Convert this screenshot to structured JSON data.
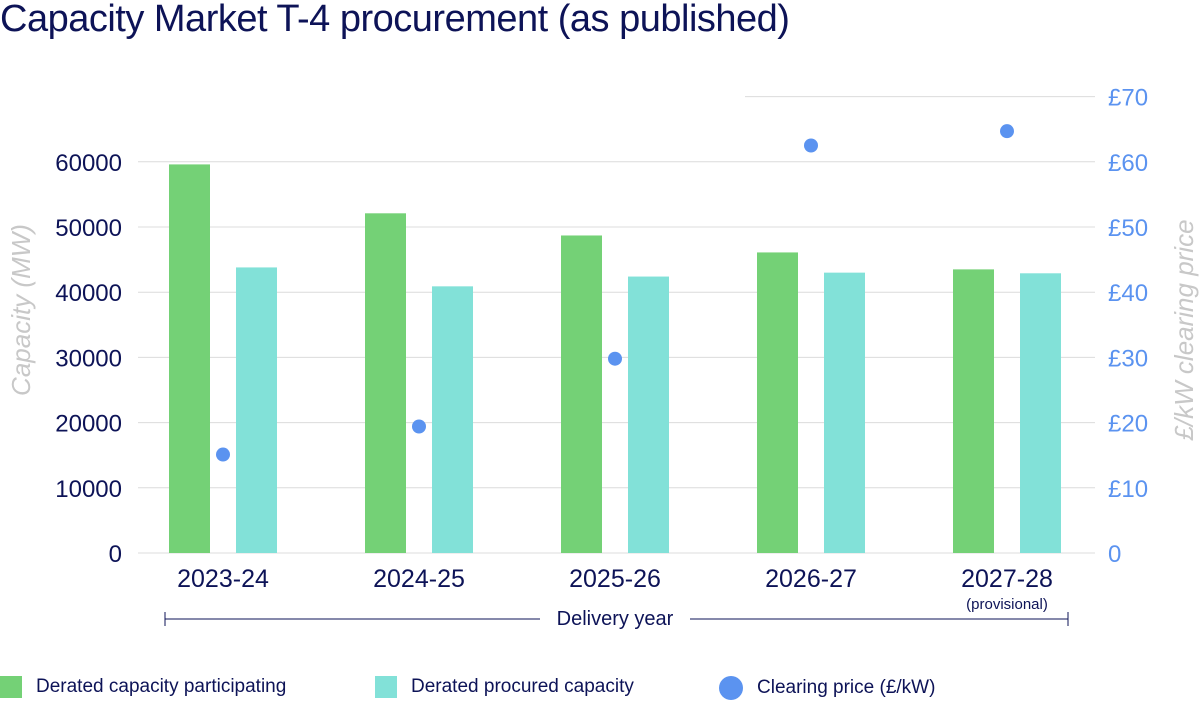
{
  "chart_data": {
    "type": "bar",
    "title": "Capacity Market T-4 procurement (as published)",
    "categories": [
      "2023-24",
      "2024-25",
      "2025-26",
      "2026-27",
      "2027-28"
    ],
    "category_notes": [
      "",
      "",
      "",
      "",
      "(provisional)"
    ],
    "xlabel": "Delivery year",
    "ylabel": "Capacity (MW)",
    "y2label": "£/kW clearing price",
    "ylim": [
      0,
      60000
    ],
    "y_ticks": [
      "0",
      "10000",
      "20000",
      "30000",
      "40000",
      "50000",
      "60000"
    ],
    "y2lim": [
      0,
      70
    ],
    "y2_ticks": [
      "0",
      "£10",
      "£20",
      "£30",
      "£40",
      "£50",
      "£60",
      "£70"
    ],
    "grid": true,
    "legend_position": "bottom",
    "series": [
      {
        "name": "Derated capacity participating",
        "kind": "bar",
        "axis": "left",
        "color": "#74d176",
        "values": [
          59600,
          52100,
          48700,
          46100,
          43500
        ]
      },
      {
        "name": "Derated procured capacity",
        "kind": "bar",
        "axis": "left",
        "color": "#82e1d8",
        "values": [
          43800,
          40900,
          42400,
          43000,
          42900
        ]
      },
      {
        "name": "Clearing price (£/kW)",
        "kind": "scatter",
        "axis": "right",
        "color": "#5b93f0",
        "values": [
          15.1,
          19.4,
          29.8,
          62.5,
          64.7
        ]
      }
    ]
  }
}
